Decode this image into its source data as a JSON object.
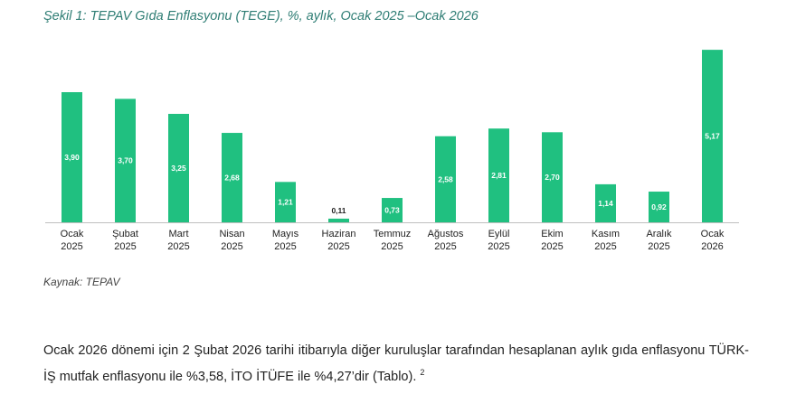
{
  "figure": {
    "title": "Şekil 1: TEPAV Gıda Enflasyonu (TEGE), %, aylık, Ocak 2025 –Ocak 2026",
    "source": "Kaynak: TEPAV"
  },
  "chart_data": {
    "type": "bar",
    "categories": [
      [
        "Ocak",
        "2025"
      ],
      [
        "Şubat",
        "2025"
      ],
      [
        "Mart",
        "2025"
      ],
      [
        "Nisan",
        "2025"
      ],
      [
        "Mayıs",
        "2025"
      ],
      [
        "Haziran",
        "2025"
      ],
      [
        "Temmuz",
        "2025"
      ],
      [
        "Ağustos",
        "2025"
      ],
      [
        "Eylül",
        "2025"
      ],
      [
        "Ekim",
        "2025"
      ],
      [
        "Kasım",
        "2025"
      ],
      [
        "Aralık",
        "2025"
      ],
      [
        "Ocak",
        "2026"
      ]
    ],
    "values": [
      3.9,
      3.7,
      3.25,
      2.68,
      1.21,
      0.11,
      0.73,
      2.58,
      2.81,
      2.7,
      1.14,
      0.92,
      5.17
    ],
    "value_labels": [
      "3,90",
      "3,70",
      "3,25",
      "2,68",
      "1,21",
      "0,11",
      "0,73",
      "2,58",
      "2,81",
      "2,70",
      "1,14",
      "0,92",
      "5,17"
    ],
    "ylim": [
      0,
      5.2
    ],
    "bar_color": "#20c080",
    "label_color_inside": "#ffffff",
    "label_color_outside": "#222222",
    "grid": false,
    "legend": "none"
  },
  "paragraph": {
    "text": "Ocak 2026 dönemi için 2 Şubat 2026 tarihi itibarıyla diğer kuruluşlar tarafından hesaplanan aylık gıda enflasyonu TÜRK-İŞ mutfak enflasyonu ile %3,58, İTO İTÜFE ile %4,27’dir (Tablo).",
    "footnote": "2"
  }
}
